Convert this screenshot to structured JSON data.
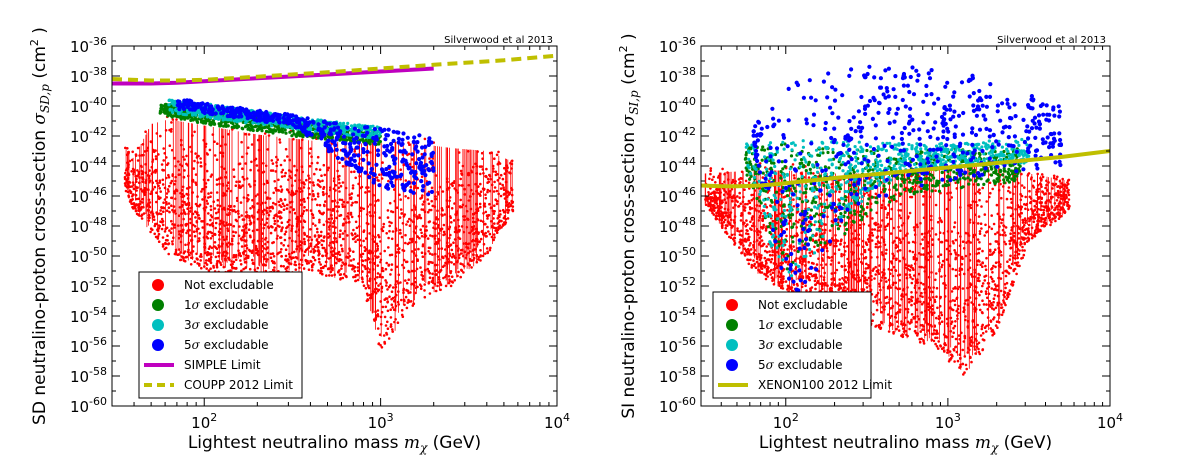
{
  "figure": {
    "colors": {
      "not_excludable": "#ff0000",
      "one_sigma": "#008000",
      "three_sigma": "#00bfbf",
      "five_sigma": "#0000ff",
      "simple": "#bf00bf",
      "coupp": "#bfbf00",
      "xenon": "#bfbf00"
    }
  },
  "chart_data": [
    {
      "type": "scatter",
      "credit": "Silverwood et al 2013",
      "xlabel_main": "Lightest neutralino mass ",
      "xlabel_sym": "m",
      "xlabel_sub": "χ",
      "xlabel_unit": " (GeV)",
      "ylabel_main": "SD neutralino-proton cross-section ",
      "ylabel_sym": "σ",
      "ylabel_sub": "SD,p",
      "ylabel_unit": " (cm",
      "ylabel_exp": "2",
      "ylabel_close": " )",
      "x_scale": "log",
      "y_scale": "log",
      "xlim": [
        30,
        10000
      ],
      "ylim": [
        1e-60,
        1e-36
      ],
      "x_ticks": [
        {
          "base": "10",
          "exp": "2",
          "value": 100
        },
        {
          "base": "10",
          "exp": "3",
          "value": 1000
        },
        {
          "base": "10",
          "exp": "4",
          "value": 10000
        }
      ],
      "y_ticks": [
        {
          "base": "10",
          "exp": "-36",
          "value": -36
        },
        {
          "base": "10",
          "exp": "-38",
          "value": -38
        },
        {
          "base": "10",
          "exp": "-40",
          "value": -40
        },
        {
          "base": "10",
          "exp": "-42",
          "value": -42
        },
        {
          "base": "10",
          "exp": "-44",
          "value": -44
        },
        {
          "base": "10",
          "exp": "-46",
          "value": -46
        },
        {
          "base": "10",
          "exp": "-48",
          "value": -48
        },
        {
          "base": "10",
          "exp": "-50",
          "value": -50
        },
        {
          "base": "10",
          "exp": "-52",
          "value": -52
        },
        {
          "base": "10",
          "exp": "-54",
          "value": -54
        },
        {
          "base": "10",
          "exp": "-56",
          "value": -56
        },
        {
          "base": "10",
          "exp": "-58",
          "value": -58
        },
        {
          "base": "10",
          "exp": "-60",
          "value": -60
        }
      ],
      "legend_placement": "lower-left",
      "legend": [
        {
          "label": "Not excludable",
          "kind": "dot",
          "color": "#ff0000"
        },
        {
          "label": " excludable",
          "prefix": "1σ",
          "kind": "dot",
          "color": "#008000"
        },
        {
          "label": " excludable",
          "prefix": "3σ",
          "kind": "dot",
          "color": "#00bfbf"
        },
        {
          "label": " excludable",
          "prefix": "5σ",
          "kind": "dot",
          "color": "#0000ff"
        },
        {
          "label": "SIMPLE Limit",
          "kind": "line",
          "color": "#bf00bf"
        },
        {
          "label": "COUPP 2012 Limit",
          "kind": "dash",
          "color": "#bfbf00"
        }
      ],
      "series": [
        {
          "name": "Not excludable",
          "color": "#ff0000",
          "envelope_log10": {
            "x": [
              1.55,
              1.6,
              1.7,
              1.8,
              2.0,
              2.3,
              2.6,
              2.9,
              3.0,
              3.2,
              3.4,
              3.6,
              3.75
            ],
            "top": [
              -42.3,
              -43,
              -40.7,
              -40.4,
              -40.8,
              -41.4,
              -41.8,
              -42.0,
              -41.8,
              -42.0,
              -42.3,
              -42.5,
              -43.2
            ],
            "bottom": [
              -45.5,
              -47,
              -48.5,
              -50,
              -51,
              -51.5,
              -51,
              -52,
              -56.5,
              -53,
              -52,
              -50,
              -47
            ]
          }
        },
        {
          "name": "1σ excludable",
          "color": "#008000",
          "envelope_log10": {
            "x": [
              1.75,
              2.0,
              2.5,
              3.0
            ],
            "top": [
              -39.8,
              -40.2,
              -41.0,
              -41.6
            ],
            "bottom": [
              -40.6,
              -41.2,
              -42.0,
              -42.6
            ]
          }
        },
        {
          "name": "3σ excludable",
          "color": "#00bfbf",
          "envelope_log10": {
            "x": [
              1.8,
              2.0,
              2.5,
              3.0
            ],
            "top": [
              -39.6,
              -39.8,
              -40.7,
              -41.4
            ],
            "bottom": [
              -40.4,
              -40.8,
              -41.5,
              -42.2
            ]
          }
        },
        {
          "name": "5σ excludable",
          "color": "#0000ff",
          "envelope_log10": {
            "x": [
              1.85,
              2.0,
              2.5,
              3.0,
              3.3
            ],
            "top": [
              -39.5,
              -39.8,
              -40.6,
              -41.5,
              -42.0
            ],
            "bottom": [
              -40.2,
              -40.5,
              -41.3,
              -45.5,
              -46.0
            ]
          }
        }
      ],
      "limits": [
        {
          "name": "SIMPLE Limit",
          "style": "solid",
          "color": "#bf00bf",
          "x": [
            30,
            50,
            70,
            100,
            200,
            500,
            1000,
            2000
          ],
          "y_log10": [
            -38.5,
            -38.5,
            -38.45,
            -38.35,
            -38.15,
            -37.9,
            -37.7,
            -37.5
          ]
        },
        {
          "name": "COUPP 2012 Limit",
          "style": "dashed",
          "color": "#bfbf00",
          "x": [
            30,
            50,
            70,
            100,
            200,
            500,
            1000,
            2000,
            5000,
            10000
          ],
          "y_log10": [
            -38.2,
            -38.3,
            -38.3,
            -38.25,
            -38.05,
            -37.75,
            -37.5,
            -37.25,
            -36.95,
            -36.65
          ]
        }
      ]
    },
    {
      "type": "scatter",
      "credit": "Silverwood et al 2013",
      "xlabel_main": "Lightest neutralino mass ",
      "xlabel_sym": "m",
      "xlabel_sub": "χ",
      "xlabel_unit": " (GeV)",
      "ylabel_main": "SI neutralino-proton cross-section ",
      "ylabel_sym": "σ",
      "ylabel_sub": "SI,p",
      "ylabel_unit": " (cm",
      "ylabel_exp": "2",
      "ylabel_close": " )",
      "x_scale": "log",
      "y_scale": "log",
      "xlim": [
        30,
        10000
      ],
      "ylim": [
        1e-60,
        1e-36
      ],
      "x_ticks": [
        {
          "base": "10",
          "exp": "2",
          "value": 100
        },
        {
          "base": "10",
          "exp": "3",
          "value": 1000
        },
        {
          "base": "10",
          "exp": "4",
          "value": 10000
        }
      ],
      "y_ticks": [
        {
          "base": "10",
          "exp": "-36",
          "value": -36
        },
        {
          "base": "10",
          "exp": "-38",
          "value": -38
        },
        {
          "base": "10",
          "exp": "-40",
          "value": -40
        },
        {
          "base": "10",
          "exp": "-42",
          "value": -42
        },
        {
          "base": "10",
          "exp": "-44",
          "value": -44
        },
        {
          "base": "10",
          "exp": "-46",
          "value": -46
        },
        {
          "base": "10",
          "exp": "-48",
          "value": -48
        },
        {
          "base": "10",
          "exp": "-50",
          "value": -50
        },
        {
          "base": "10",
          "exp": "-52",
          "value": -52
        },
        {
          "base": "10",
          "exp": "-54",
          "value": -54
        },
        {
          "base": "10",
          "exp": "-56",
          "value": -56
        },
        {
          "base": "10",
          "exp": "-58",
          "value": -58
        },
        {
          "base": "10",
          "exp": "-60",
          "value": -60
        }
      ],
      "legend_placement": "lower-left",
      "legend": [
        {
          "label": "Not excludable",
          "kind": "dot",
          "color": "#ff0000"
        },
        {
          "label": " excludable",
          "prefix": "1σ",
          "kind": "dot",
          "color": "#008000"
        },
        {
          "label": " excludable",
          "prefix": "3σ",
          "kind": "dot",
          "color": "#00bfbf"
        },
        {
          "label": " excludable",
          "prefix": "5σ",
          "kind": "dot",
          "color": "#0000ff"
        },
        {
          "label": "XENON100 2012 Limit",
          "kind": "line",
          "color": "#bfbf00"
        }
      ],
      "series": [
        {
          "name": "Not excludable",
          "color": "#ff0000",
          "envelope_log10": {
            "x": [
              1.5,
              1.8,
              2.0,
              2.3,
              2.6,
              2.9,
              3.1,
              3.3,
              3.5,
              3.75
            ],
            "top": [
              -44.0,
              -43.8,
              -43.8,
              -44.0,
              -44.0,
              -43.7,
              -43.5,
              -43.6,
              -44.0,
              -44.5
            ],
            "bottom": [
              -46.5,
              -51,
              -52.5,
              -53.5,
              -55,
              -56,
              -58,
              -55,
              -49,
              -47
            ]
          }
        },
        {
          "name": "1σ excludable",
          "color": "#008000",
          "envelope_log10": {
            "x": [
              1.75,
              2.0,
              2.3,
              2.7,
              3.1,
              3.45
            ],
            "top": [
              -42.8,
              -42.5,
              -42.8,
              -43.0,
              -42.8,
              -42.8
            ],
            "bottom": [
              -44.5,
              -51,
              -49,
              -46,
              -45.5,
              -45.0
            ]
          }
        },
        {
          "name": "3σ excludable",
          "color": "#00bfbf",
          "envelope_log10": {
            "x": [
              1.75,
              2.0,
              2.3,
              2.7,
              3.1,
              3.5
            ],
            "top": [
              -42.5,
              -42.2,
              -42.3,
              -42.5,
              -42.4,
              -42.2
            ],
            "bottom": [
              -44.0,
              -52.5,
              -48,
              -44.5,
              -44.0,
              -43.8
            ]
          }
        },
        {
          "name": "5σ excludable",
          "color": "#0000ff",
          "envelope_log10": {
            "x": [
              1.8,
              2.0,
              2.4,
              2.8,
              3.1,
              3.3,
              3.7
            ],
            "top": [
              -41.5,
              -38.5,
              -37.3,
              -37.4,
              -37.8,
              -38.5,
              -40.0
            ],
            "bottom": [
              -42.5,
              -54.5,
              -47,
              -45.5,
              -45.0,
              -44.5,
              -44.0
            ]
          }
        }
      ],
      "limits": [
        {
          "name": "XENON100 2012 Limit",
          "style": "solid",
          "color": "#bfbf00",
          "x": [
            30,
            40,
            50,
            70,
            100,
            200,
            500,
            1000,
            2000,
            5000,
            10000
          ],
          "y_log10": [
            -45.3,
            -45.35,
            -45.35,
            -45.3,
            -45.15,
            -44.8,
            -44.4,
            -44.1,
            -43.8,
            -43.4,
            -43.0
          ]
        }
      ]
    }
  ]
}
